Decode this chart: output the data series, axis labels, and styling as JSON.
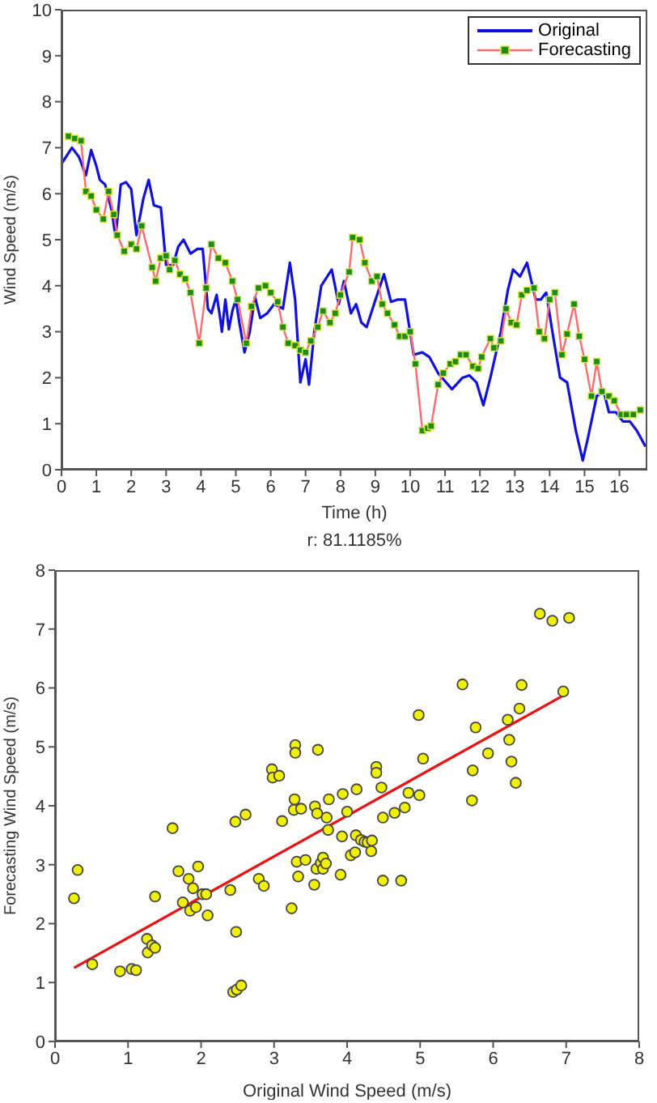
{
  "chart_data": [
    {
      "type": "line",
      "xlabel": "Time (h)",
      "ylabel": "Wind Speed (m/s)",
      "xlim": [
        0,
        16.8
      ],
      "xticks": [
        0,
        1,
        2,
        3,
        4,
        5,
        6,
        7,
        8,
        9,
        10,
        11,
        12,
        13,
        14,
        15,
        16
      ],
      "ylim": [
        0,
        10
      ],
      "yticks": [
        0,
        1,
        2,
        3,
        4,
        5,
        6,
        7,
        8,
        9,
        10
      ],
      "legend": "top right",
      "series": [
        {
          "name": "Original",
          "color": "#1010e0",
          "marker": "none",
          "x": [
            0,
            0.3,
            0.5,
            0.7,
            0.85,
            1.0,
            1.1,
            1.25,
            1.45,
            1.55,
            1.7,
            1.85,
            2.0,
            2.15,
            2.35,
            2.5,
            2.65,
            2.85,
            3.0,
            3.2,
            3.35,
            3.5,
            3.7,
            3.9,
            4.05,
            4.2,
            4.3,
            4.45,
            4.55,
            4.6,
            4.7,
            4.8,
            4.9,
            5.0,
            5.1,
            5.25,
            5.4,
            5.55,
            5.7,
            5.9,
            6.1,
            6.35,
            6.55,
            6.7,
            6.85,
            7.0,
            7.1,
            7.25,
            7.45,
            7.75,
            7.95,
            8.1,
            8.3,
            8.45,
            8.6,
            8.75,
            9.05,
            9.25,
            9.45,
            9.65,
            9.85,
            10.1,
            10.35,
            10.55,
            10.8,
            11.2,
            11.5,
            11.7,
            11.9,
            12.1,
            12.3,
            12.6,
            12.8,
            12.95,
            13.15,
            13.35,
            13.6,
            13.75,
            13.9,
            14.1,
            14.3,
            14.5,
            14.75,
            14.95,
            15.1,
            15.35,
            15.55,
            15.7,
            15.9,
            16.1,
            16.3,
            16.5,
            16.75
          ],
          "values": [
            6.65,
            7.0,
            6.8,
            6.4,
            6.95,
            6.6,
            6.3,
            6.2,
            5.6,
            5.05,
            6.2,
            6.25,
            6.1,
            5.1,
            5.9,
            6.3,
            5.75,
            5.7,
            4.45,
            4.45,
            4.85,
            5.0,
            4.7,
            4.8,
            4.8,
            3.5,
            3.4,
            3.8,
            3.3,
            3.0,
            3.7,
            3.05,
            3.45,
            3.7,
            3.2,
            2.55,
            3.0,
            3.75,
            3.3,
            3.4,
            3.6,
            3.5,
            4.5,
            3.7,
            1.9,
            2.4,
            1.85,
            3.0,
            4.0,
            4.35,
            3.6,
            4.1,
            3.4,
            3.6,
            3.2,
            3.1,
            3.8,
            4.25,
            3.65,
            3.7,
            3.7,
            2.5,
            2.55,
            2.45,
            2.1,
            1.75,
            2.0,
            2.05,
            1.9,
            1.4,
            2.0,
            3.0,
            3.9,
            4.35,
            4.2,
            4.5,
            3.7,
            3.7,
            3.85,
            2.9,
            2.0,
            1.9,
            0.85,
            0.2,
            0.7,
            1.6,
            1.7,
            1.25,
            1.25,
            1.05,
            1.05,
            0.85,
            0.5
          ]
        },
        {
          "name": "Forecasting",
          "color": "#ff6b6b",
          "marker": "square",
          "x": [
            0.2,
            0.38,
            0.56,
            0.7,
            0.85,
            1.0,
            1.2,
            1.35,
            1.5,
            1.6,
            1.8,
            2.0,
            2.15,
            2.3,
            2.6,
            2.7,
            2.85,
            3.0,
            3.1,
            3.25,
            3.4,
            3.55,
            3.7,
            3.95,
            4.15,
            4.3,
            4.5,
            4.7,
            4.9,
            5.05,
            5.3,
            5.45,
            5.65,
            5.85,
            6.0,
            6.2,
            6.35,
            6.5,
            6.7,
            6.85,
            7.0,
            7.15,
            7.35,
            7.5,
            7.7,
            7.85,
            8.0,
            8.25,
            8.35,
            8.55,
            8.7,
            8.9,
            9.05,
            9.2,
            9.35,
            9.55,
            9.7,
            9.85,
            10.0,
            10.15,
            10.35,
            10.5,
            10.6,
            10.8,
            10.95,
            11.15,
            11.3,
            11.45,
            11.6,
            11.8,
            11.95,
            12.05,
            12.3,
            12.4,
            12.6,
            12.75,
            12.9,
            13.05,
            13.2,
            13.35,
            13.55,
            13.7,
            13.85,
            14.0,
            14.15,
            14.35,
            14.5,
            14.7,
            14.85,
            15.0,
            15.2,
            15.35,
            15.5,
            15.7,
            15.85,
            16.05,
            16.2,
            16.4,
            16.6
          ],
          "values": [
            7.25,
            7.2,
            7.15,
            6.05,
            5.95,
            5.65,
            5.45,
            6.05,
            5.55,
            5.1,
            4.75,
            4.9,
            4.8,
            5.3,
            4.4,
            4.1,
            4.6,
            4.65,
            4.35,
            4.55,
            4.25,
            4.15,
            3.85,
            2.75,
            3.95,
            4.9,
            4.6,
            4.5,
            4.1,
            3.7,
            2.75,
            3.55,
            3.95,
            4.0,
            3.85,
            3.65,
            3.1,
            2.75,
            2.7,
            2.6,
            2.55,
            2.8,
            3.1,
            3.45,
            3.2,
            3.4,
            3.8,
            4.3,
            5.05,
            5.0,
            4.5,
            4.1,
            4.2,
            3.6,
            3.4,
            3.15,
            2.9,
            2.9,
            3.0,
            2.3,
            0.85,
            0.9,
            0.95,
            1.85,
            2.1,
            2.3,
            2.35,
            2.5,
            2.5,
            2.25,
            2.2,
            2.45,
            2.85,
            2.65,
            2.8,
            3.5,
            3.2,
            3.15,
            3.8,
            3.9,
            3.95,
            3.0,
            2.85,
            3.7,
            3.85,
            2.5,
            2.95,
            3.6,
            2.9,
            2.4,
            1.6,
            2.35,
            1.7,
            1.6,
            1.5,
            1.2,
            1.2,
            1.2,
            1.3
          ]
        }
      ]
    },
    {
      "type": "scatter",
      "title": "r: 81.1185%",
      "xlabel": "Original Wind Speed (m/s)",
      "ylabel": "Forecasting Wind Speed (m/s)",
      "xlim": [
        0,
        8
      ],
      "xticks": [
        0,
        1,
        2,
        3,
        4,
        5,
        6,
        7,
        8
      ],
      "ylim": [
        0,
        8
      ],
      "yticks": [
        0,
        1,
        2,
        3,
        4,
        5,
        6,
        7,
        8
      ],
      "legend": false,
      "series": [
        {
          "type": "scatter",
          "color": "#f0f000",
          "marker": "circle",
          "x": [
            0.26,
            0.31,
            0.51,
            0.89,
            1.05,
            1.11,
            1.26,
            1.27,
            1.33,
            1.37,
            1.37,
            1.61,
            1.69,
            1.75,
            1.83,
            1.85,
            1.89,
            1.93,
            1.96,
            2.02,
            2.07,
            2.09,
            2.4,
            2.44,
            2.49,
            2.55,
            2.48,
            2.47,
            2.61,
            2.79,
            2.86,
            2.97,
            2.98,
            3.07,
            3.24,
            3.11,
            3.28,
            3.27,
            3.31,
            3.33,
            3.37,
            3.43,
            3.29,
            3.29,
            3.6,
            3.55,
            3.56,
            3.59,
            3.58,
            3.64,
            3.67,
            3.67,
            3.71,
            3.72,
            3.74,
            3.75,
            3.91,
            3.93,
            3.94,
            4.0,
            4.05,
            4.11,
            4.12,
            4.13,
            4.19,
            4.24,
            4.28,
            4.33,
            4.34,
            4.4,
            4.4,
            4.47,
            4.49,
            4.49,
            4.65,
            4.74,
            4.79,
            4.84,
            4.99,
            4.98,
            5.04,
            5.58,
            5.72,
            5.71,
            5.76,
            5.93,
            6.2,
            6.22,
            6.25,
            6.31,
            6.36,
            6.39,
            6.64,
            6.81,
            7.04,
            6.96
          ],
          "values": [
            2.43,
            2.91,
            1.31,
            1.19,
            1.23,
            1.21,
            1.74,
            1.51,
            1.63,
            1.59,
            2.46,
            3.62,
            2.89,
            2.36,
            2.76,
            2.22,
            2.6,
            2.28,
            2.97,
            2.5,
            2.5,
            2.14,
            2.57,
            0.84,
            0.88,
            0.95,
            1.86,
            3.73,
            3.85,
            2.76,
            2.64,
            4.62,
            4.48,
            4.51,
            2.26,
            3.74,
            4.11,
            3.93,
            3.05,
            2.8,
            3.95,
            3.08,
            5.03,
            4.9,
            4.95,
            2.66,
            3.99,
            3.87,
            2.93,
            3.03,
            3.12,
            2.93,
            3.02,
            3.8,
            3.59,
            4.11,
            2.83,
            3.48,
            4.2,
            3.9,
            3.16,
            3.21,
            3.5,
            4.28,
            3.42,
            3.39,
            3.38,
            3.23,
            3.41,
            4.66,
            4.56,
            4.31,
            3.8,
            2.73,
            3.88,
            2.73,
            3.97,
            4.22,
            4.18,
            5.54,
            4.8,
            6.06,
            4.6,
            4.09,
            5.33,
            4.89,
            5.46,
            5.12,
            4.75,
            4.39,
            5.65,
            6.05,
            7.26,
            7.14,
            7.19,
            5.94
          ]
        },
        {
          "type": "line",
          "color": "#ee1111",
          "marker": "none",
          "x": [
            0.26,
            7.0
          ],
          "values": [
            1.25,
            5.9
          ]
        }
      ]
    }
  ]
}
